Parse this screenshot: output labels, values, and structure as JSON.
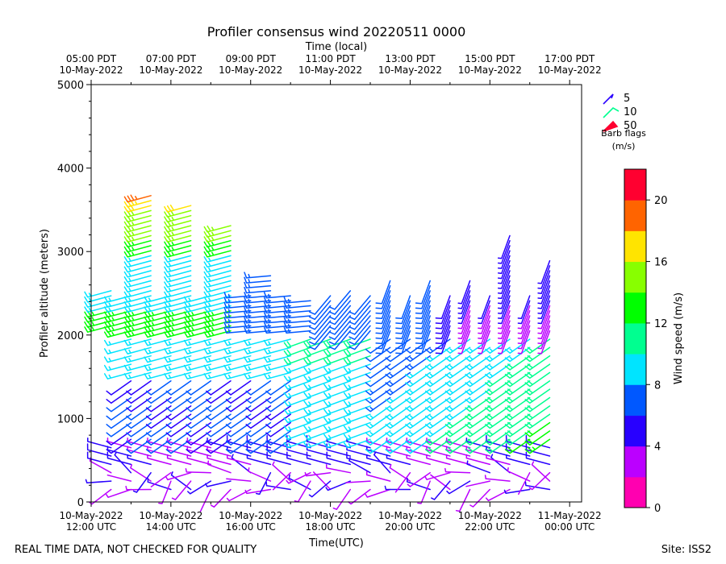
{
  "chart_data": {
    "type": "wind-barb-profile",
    "title": "Profiler consensus wind 20220511 0000",
    "top_axis_label": "Time (local)",
    "top_ticks": [
      {
        "time": "05:00 PDT",
        "date": "10-May-2022",
        "hour_utc": 12
      },
      {
        "time": "07:00 PDT",
        "date": "10-May-2022",
        "hour_utc": 14
      },
      {
        "time": "09:00 PDT",
        "date": "10-May-2022",
        "hour_utc": 16
      },
      {
        "time": "11:00 PDT",
        "date": "10-May-2022",
        "hour_utc": 18
      },
      {
        "time": "13:00 PDT",
        "date": "10-May-2022",
        "hour_utc": 20
      },
      {
        "time": "15:00 PDT",
        "date": "10-May-2022",
        "hour_utc": 22
      },
      {
        "time": "17:00 PDT",
        "date": "10-May-2022",
        "hour_utc": 24
      }
    ],
    "bottom_ticks": [
      {
        "date": "10-May-2022",
        "time": "12:00 UTC",
        "hour_utc": 12
      },
      {
        "date": "10-May-2022",
        "time": "14:00 UTC",
        "hour_utc": 14
      },
      {
        "date": "10-May-2022",
        "time": "16:00 UTC",
        "hour_utc": 16
      },
      {
        "date": "10-May-2022",
        "time": "18:00 UTC",
        "hour_utc": 18
      },
      {
        "date": "10-May-2022",
        "time": "20:00 UTC",
        "hour_utc": 20
      },
      {
        "date": "10-May-2022",
        "time": "22:00 UTC",
        "hour_utc": 22
      },
      {
        "date": "11-May-2022",
        "time": "00:00 UTC",
        "hour_utc": 24
      }
    ],
    "xlabel": "Time(UTC)",
    "ylabel": "Profiler altitude (meters)",
    "xlim_hours_utc": [
      12,
      24.3
    ],
    "ylim": [
      0,
      5000
    ],
    "y_ticks": [
      0,
      1000,
      2000,
      3000,
      4000,
      5000
    ],
    "y_tick_labels": [
      "0",
      "1000",
      "2000",
      "3000",
      "4000",
      "5000"
    ],
    "legend": {
      "placement": "outside top-right",
      "entries": [
        "5",
        "10",
        "50"
      ],
      "caption_line1": "Barb flags",
      "caption_line2": "(m/s)"
    },
    "colorbar": {
      "label": "Wind speed (m/s)",
      "range": [
        0,
        22
      ],
      "bin_width": 2,
      "colors": [
        "#ff00b0",
        "#bb00ff",
        "#2800ff",
        "#0058ff",
        "#00e4ff",
        "#00ff90",
        "#00ff00",
        "#88ff00",
        "#ffe400",
        "#ff6400",
        "#ff0030"
      ],
      "ticks": [
        0,
        4,
        8,
        12,
        16,
        20
      ],
      "tick_labels": [
        "0",
        "4",
        "8",
        "12",
        "16",
        "20"
      ]
    },
    "profile_times_hours_utc": [
      12.5,
      13.0,
      13.5,
      14.0,
      14.5,
      15.0,
      15.5,
      16.0,
      16.5,
      17.0,
      17.5,
      18.0,
      18.5,
      19.0,
      19.5,
      20.0,
      20.5,
      21.0,
      21.5,
      22.0,
      22.5,
      23.0,
      23.5
    ],
    "notes": "Barbs plotted at ~100 m intervals from ~150 m up to profile top; speeds 2-7 m/s low levels and mid-level maximum, 9-16 m/s aloft early; green/cyan 9-13 m/s 700-1800 m in afternoon; magenta/purple 3-5 m/s 2000-3000 m late."
  },
  "footer": {
    "disclaimer": "REAL TIME DATA, NOT CHECKED FOR QUALITY",
    "site": "Site: ISS2"
  }
}
